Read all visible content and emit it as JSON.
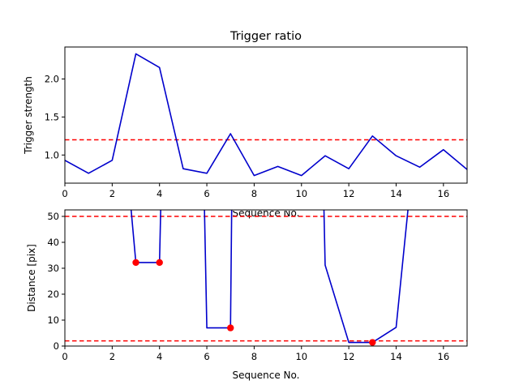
{
  "colors": {
    "line": "#0000cc",
    "threshold": "#ff0000",
    "marker": "#ff0000",
    "axes": "#000000",
    "background": "#ffffff"
  },
  "chart_data": [
    {
      "type": "line",
      "title": "Trigger ratio",
      "xlabel": "Sequence No.",
      "ylabel": "Trigger strength",
      "xlim": [
        0,
        17
      ],
      "ylim": [
        0.63,
        2.42
      ],
      "xticks": [
        0,
        2,
        4,
        6,
        8,
        10,
        12,
        14,
        16
      ],
      "yticks": [
        1.0,
        1.5,
        2.0
      ],
      "ytick_labels": [
        "1.0",
        "1.5",
        "2.0"
      ],
      "grid": false,
      "series": [
        {
          "style": "solid",
          "color": "#0000cc",
          "x": [
            0,
            1,
            2,
            3,
            4,
            5,
            6,
            7,
            8,
            9,
            10,
            11,
            12,
            13,
            14,
            15,
            16,
            17
          ],
          "y": [
            0.93,
            0.76,
            0.93,
            2.33,
            2.15,
            0.82,
            0.76,
            1.28,
            0.73,
            0.85,
            0.73,
            0.99,
            0.82,
            1.25,
            0.99,
            0.84,
            1.07,
            0.81
          ]
        }
      ],
      "hlines": [
        {
          "y": 1.2,
          "style": "dashed",
          "color": "#ff0000"
        }
      ]
    },
    {
      "type": "line",
      "title": "",
      "xlabel": "Sequence No.",
      "ylabel": "Distance [pix]",
      "xlim": [
        0,
        17
      ],
      "ylim": [
        0,
        52.5
      ],
      "xticks": [
        0,
        2,
        4,
        6,
        8,
        10,
        12,
        14,
        16
      ],
      "yticks": [
        0,
        10,
        20,
        30,
        40,
        50
      ],
      "ytick_labels": [
        "0",
        "10",
        "20",
        "30",
        "40",
        "50"
      ],
      "grid": false,
      "series": [
        {
          "style": "solid",
          "color": "#0000cc",
          "x": [
            2.6,
            2.8,
            3,
            4,
            4.05,
            4.15
          ],
          "y": [
            60,
            52.5,
            32.2,
            32.2,
            52.5,
            60
          ]
        },
        {
          "style": "solid",
          "color": "#0000cc",
          "x": [
            5.85,
            5.9,
            6,
            7,
            7.05,
            7.15
          ],
          "y": [
            60,
            52.5,
            7,
            7,
            52.5,
            60
          ]
        },
        {
          "style": "solid",
          "color": "#0000cc",
          "x": [
            10.9,
            10.95,
            11,
            12,
            13,
            14,
            14.5,
            14.7
          ],
          "y": [
            60,
            52.5,
            31.2,
            1.4,
            1.4,
            7.2,
            52.5,
            60
          ]
        },
        {
          "style": "markers",
          "color": "#ff0000",
          "x": [
            3,
            4,
            7,
            13
          ],
          "y": [
            32.2,
            32.2,
            7,
            1.4
          ]
        }
      ],
      "hlines": [
        {
          "y": 50,
          "style": "dashed",
          "color": "#ff0000"
        },
        {
          "y": 2,
          "style": "dashed",
          "color": "#ff0000"
        }
      ]
    }
  ]
}
